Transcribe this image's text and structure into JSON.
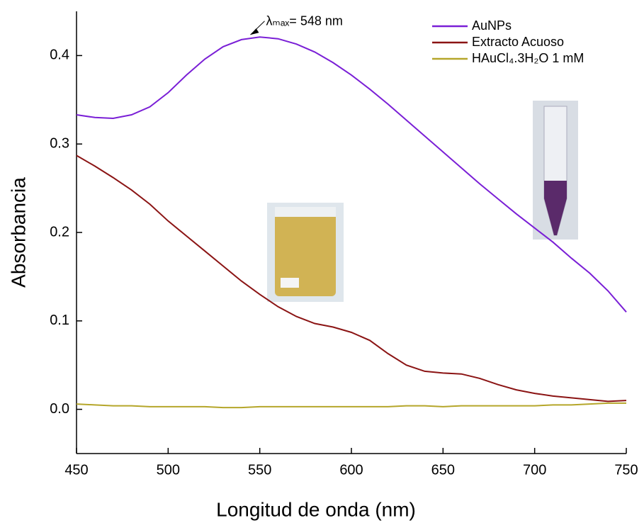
{
  "chart_data": {
    "type": "line",
    "xlabel": "Longitud de onda (nm)",
    "ylabel": "Absorbancia",
    "annotation": "λₘₐₓ= 548 nm",
    "annotation_x": 548,
    "x": [
      450,
      460,
      470,
      480,
      490,
      500,
      510,
      520,
      530,
      540,
      550,
      560,
      570,
      580,
      590,
      600,
      610,
      620,
      630,
      640,
      650,
      660,
      670,
      680,
      690,
      700,
      710,
      720,
      730,
      740,
      750
    ],
    "series": [
      {
        "name": "AuNPs",
        "color": "#7a1fd6",
        "values": [
          0.333,
          0.33,
          0.329,
          0.333,
          0.342,
          0.358,
          0.378,
          0.396,
          0.41,
          0.418,
          0.421,
          0.419,
          0.413,
          0.404,
          0.392,
          0.378,
          0.362,
          0.345,
          0.327,
          0.309,
          0.291,
          0.273,
          0.255,
          0.238,
          0.221,
          0.205,
          0.189,
          0.171,
          0.154,
          0.134,
          0.11
        ]
      },
      {
        "name": "Extracto Acuoso",
        "color": "#8b1414",
        "values": [
          0.287,
          0.275,
          0.262,
          0.248,
          0.232,
          0.213,
          0.196,
          0.179,
          0.162,
          0.145,
          0.13,
          0.116,
          0.105,
          0.097,
          0.093,
          0.087,
          0.078,
          0.063,
          0.05,
          0.043,
          0.041,
          0.04,
          0.035,
          0.028,
          0.022,
          0.018,
          0.015,
          0.013,
          0.011,
          0.009,
          0.01
        ]
      },
      {
        "name": "HAuCl₄.3H₂O 1 mM",
        "color": "#b5a62a",
        "values": [
          0.006,
          0.005,
          0.004,
          0.004,
          0.003,
          0.003,
          0.003,
          0.003,
          0.002,
          0.002,
          0.003,
          0.003,
          0.003,
          0.003,
          0.003,
          0.003,
          0.003,
          0.003,
          0.004,
          0.004,
          0.003,
          0.004,
          0.004,
          0.004,
          0.004,
          0.004,
          0.005,
          0.005,
          0.006,
          0.007,
          0.007
        ]
      }
    ],
    "xlim": [
      450,
      750
    ],
    "xticks": [
      450,
      500,
      550,
      600,
      650,
      700,
      750
    ],
    "ylim": [
      -0.05,
      0.45
    ],
    "yticks": [
      {
        "value": 0,
        "label": "0.0"
      },
      0.1,
      0.2,
      0.3,
      0.4
    ],
    "legend": "top-right"
  }
}
